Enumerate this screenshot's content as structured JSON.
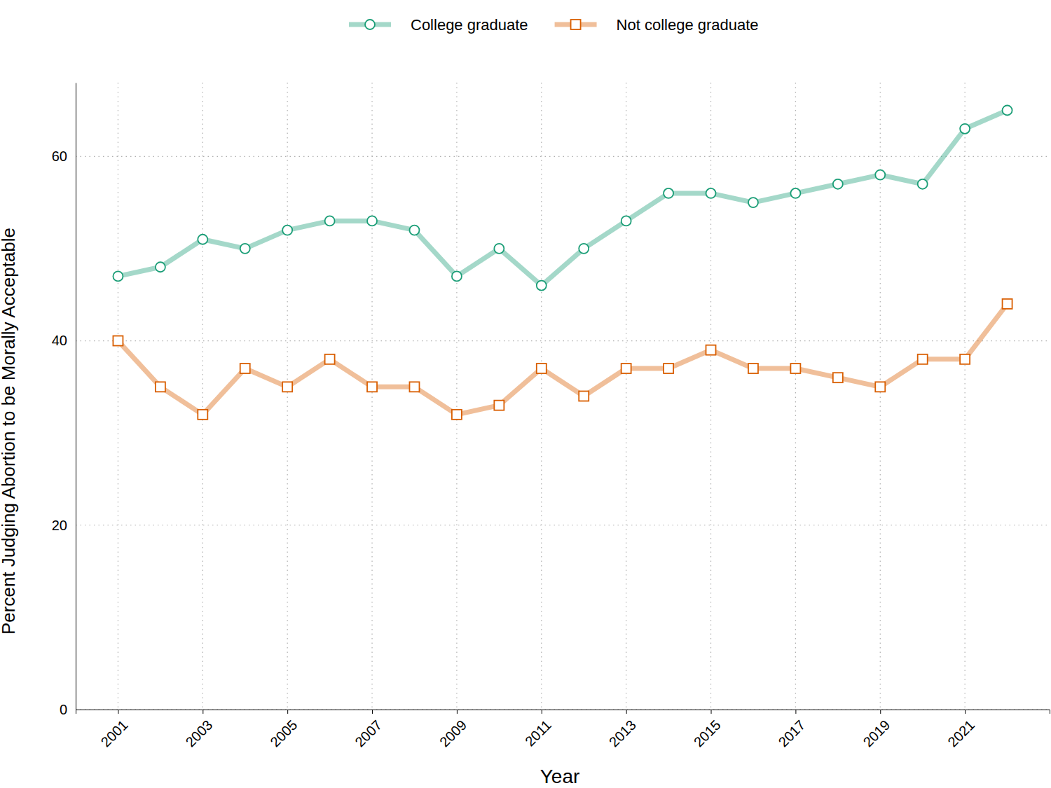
{
  "chart_data": {
    "type": "line",
    "x_label": "Year",
    "y_label": "Percent Judging Abortion to be Morally Acceptable",
    "x": [
      2001,
      2002,
      2003,
      2004,
      2005,
      2006,
      2007,
      2008,
      2009,
      2010,
      2011,
      2012,
      2013,
      2014,
      2015,
      2016,
      2017,
      2018,
      2019,
      2020,
      2021,
      2022
    ],
    "series": [
      {
        "name": "College graduate",
        "color": "#1b9e77",
        "marker": "circle",
        "values": [
          47,
          48,
          51,
          50,
          52,
          53,
          53,
          52,
          47,
          50,
          46,
          50,
          53,
          56,
          56,
          55,
          56,
          57,
          58,
          57,
          63,
          65
        ]
      },
      {
        "name": "Not college graduate",
        "color": "#d95f02",
        "marker": "square",
        "values": [
          40,
          35,
          32,
          37,
          35,
          38,
          35,
          35,
          32,
          33,
          37,
          34,
          37,
          37,
          39,
          37,
          37,
          36,
          35,
          38,
          38,
          44
        ]
      }
    ],
    "xlim": [
      2000,
      2023
    ],
    "xticks": [
      2001,
      2003,
      2005,
      2007,
      2009,
      2011,
      2013,
      2015,
      2017,
      2019,
      2021
    ],
    "ylim": [
      0,
      68
    ],
    "yticks": [
      0,
      20,
      40,
      60
    ],
    "grid": true,
    "legend": "top"
  }
}
